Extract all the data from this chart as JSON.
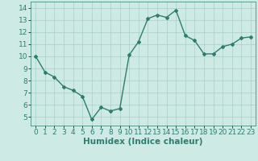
{
  "x": [
    0,
    1,
    2,
    3,
    4,
    5,
    6,
    7,
    8,
    9,
    10,
    11,
    12,
    13,
    14,
    15,
    16,
    17,
    18,
    19,
    20,
    21,
    22,
    23
  ],
  "y": [
    10.0,
    8.7,
    8.3,
    7.5,
    7.2,
    6.7,
    4.8,
    5.8,
    5.5,
    5.7,
    10.1,
    11.2,
    13.1,
    13.4,
    13.2,
    13.8,
    11.7,
    11.3,
    10.2,
    10.2,
    10.8,
    11.0,
    11.5,
    11.6
  ],
  "xlabel": "Humidex (Indice chaleur)",
  "xlim": [
    -0.5,
    23.5
  ],
  "ylim": [
    4.3,
    14.5
  ],
  "yticks": [
    5,
    6,
    7,
    8,
    9,
    10,
    11,
    12,
    13,
    14
  ],
  "xticks": [
    0,
    1,
    2,
    3,
    4,
    5,
    6,
    7,
    8,
    9,
    10,
    11,
    12,
    13,
    14,
    15,
    16,
    17,
    18,
    19,
    20,
    21,
    22,
    23
  ],
  "line_color": "#2e7d6e",
  "marker": "D",
  "marker_size": 2.0,
  "bg_color": "#ceeae5",
  "grid_color": "#aacec8",
  "tick_fontsize": 6.5,
  "xlabel_fontsize": 7.5
}
